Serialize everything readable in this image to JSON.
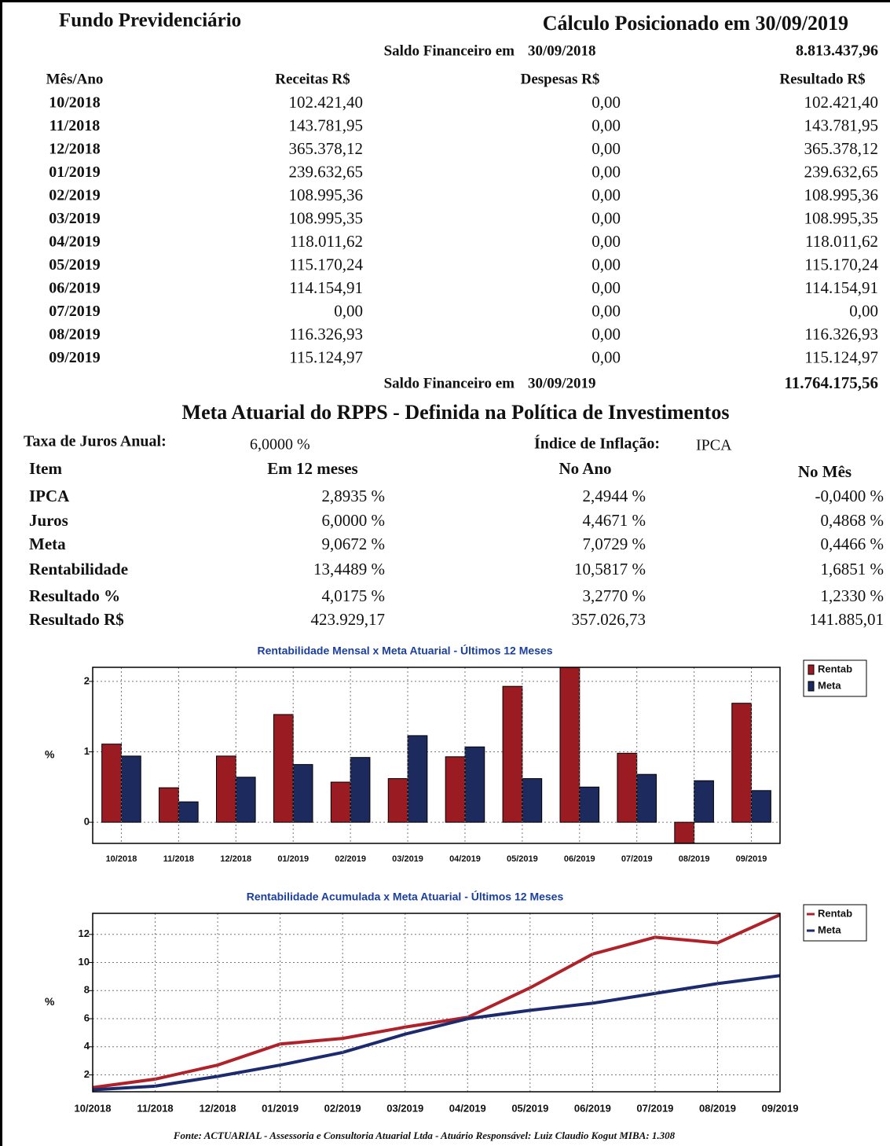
{
  "header": {
    "title": "Fundo Previdenciário",
    "calc": "Cálculo Posicionado em 30/09/2019"
  },
  "saldo_inicial": {
    "label": "Saldo Financeiro em",
    "date": "30/09/2018",
    "value": "8.813.437,96"
  },
  "table": {
    "columns": [
      "Mês/Ano",
      "Receitas R$",
      "Despesas R$",
      "Resultado R$"
    ],
    "rows": [
      [
        "10/2018",
        "102.421,40",
        "0,00",
        "102.421,40"
      ],
      [
        "11/2018",
        "143.781,95",
        "0,00",
        "143.781,95"
      ],
      [
        "12/2018",
        "365.378,12",
        "0,00",
        "365.378,12"
      ],
      [
        "01/2019",
        "239.632,65",
        "0,00",
        "239.632,65"
      ],
      [
        "02/2019",
        "108.995,36",
        "0,00",
        "108.995,36"
      ],
      [
        "03/2019",
        "108.995,35",
        "0,00",
        "108.995,35"
      ],
      [
        "04/2019",
        "118.011,62",
        "0,00",
        "118.011,62"
      ],
      [
        "05/2019",
        "115.170,24",
        "0,00",
        "115.170,24"
      ],
      [
        "06/2019",
        "114.154,91",
        "0,00",
        "114.154,91"
      ],
      [
        "07/2019",
        "0,00",
        "0,00",
        "0,00"
      ],
      [
        "08/2019",
        "116.326,93",
        "0,00",
        "116.326,93"
      ],
      [
        "09/2019",
        "115.124,97",
        "0,00",
        "115.124,97"
      ]
    ]
  },
  "saldo_final": {
    "label": "Saldo Financeiro em",
    "date": "30/09/2019",
    "value": "11.764.175,56"
  },
  "meta": {
    "title": "Meta Atuarial do RPPS - Definida na Política de Investimentos",
    "taxa_label": "Taxa de Juros Anual:",
    "taxa_value": "6,0000 %",
    "indice_label": "Índice de Inflação:",
    "indice_value": "IPCA",
    "columns": [
      "Item",
      "Em 12 meses",
      "No Ano",
      "No Mês"
    ],
    "rows": [
      [
        "IPCA",
        "2,8935 %",
        "2,4944 %",
        "-0,0400 %"
      ],
      [
        "Juros",
        "6,0000 %",
        "4,4671 %",
        "0,4868 %"
      ],
      [
        "Meta",
        "9,0672 %",
        "7,0729 %",
        "0,4466 %"
      ],
      [
        "Rentabilidade",
        "13,4489 %",
        "10,5817 %",
        "1,6851 %"
      ],
      [
        "Resultado %",
        "4,0175 %",
        "3,2770 %",
        "1,2330 %"
      ],
      [
        "Resultado R$",
        "423.929,17",
        "357.026,73",
        "141.885,01"
      ]
    ]
  },
  "footer": "Fonte: ACTUARIAL - Assessoria e Consultoria Atuarial Ltda - Atuário Responsável: Luiz Claudio Kogut MIBA: 1.308",
  "chart_data": [
    {
      "type": "bar",
      "title": "Rentabilidade Mensal x Meta Atuarial - Últimos 12 Meses",
      "y_label": "%",
      "categories": [
        "10/2018",
        "11/2018",
        "12/2018",
        "01/2019",
        "02/2019",
        "03/2019",
        "04/2019",
        "05/2019",
        "06/2019",
        "07/2019",
        "08/2019",
        "09/2019"
      ],
      "series": [
        {
          "name": "Rentab",
          "color": "#9b1b22",
          "values": [
            1.11,
            0.49,
            0.94,
            1.53,
            0.57,
            0.62,
            0.93,
            1.93,
            2.4,
            0.98,
            -0.3,
            1.69
          ]
        },
        {
          "name": "Meta",
          "color": "#1c2a5e",
          "values": [
            0.94,
            0.29,
            0.64,
            0.82,
            0.92,
            1.23,
            1.07,
            0.62,
            0.5,
            0.68,
            0.59,
            0.45
          ]
        }
      ],
      "ylim": [
        -0.3,
        2.2
      ],
      "yticks": [
        0,
        1,
        2
      ],
      "grid": true,
      "legend": "right"
    },
    {
      "type": "line",
      "title": "Rentabilidade Acumulada x Meta Atuarial - Últimos 12 Meses",
      "y_label": "%",
      "categories": [
        "10/2018",
        "11/2018",
        "12/2018",
        "01/2019",
        "02/2019",
        "03/2019",
        "04/2019",
        "05/2019",
        "06/2019",
        "07/2019",
        "08/2019",
        "09/2019"
      ],
      "series": [
        {
          "name": "Rentab",
          "color": "#b0222a",
          "values": [
            1.1,
            1.7,
            2.7,
            4.2,
            4.6,
            5.4,
            6.1,
            8.2,
            10.6,
            11.8,
            11.4,
            13.4
          ]
        },
        {
          "name": "Meta",
          "color": "#1c2a6e",
          "values": [
            0.94,
            1.2,
            1.9,
            2.7,
            3.6,
            4.9,
            6.0,
            6.6,
            7.1,
            7.8,
            8.5,
            9.07
          ]
        }
      ],
      "ylim": [
        0.8,
        13.5
      ],
      "yticks": [
        2,
        4,
        6,
        8,
        10,
        12
      ],
      "grid": true,
      "legend": "right"
    }
  ]
}
